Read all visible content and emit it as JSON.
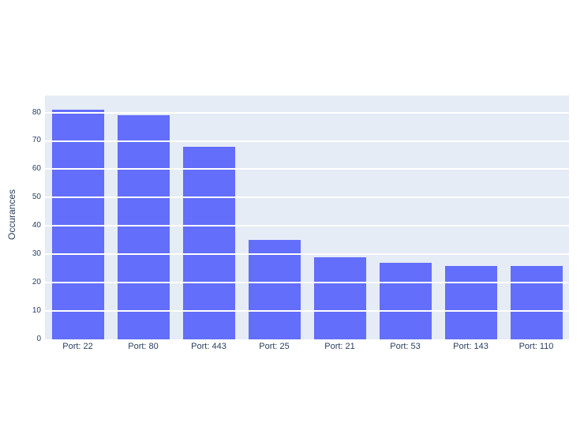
{
  "chart_data": {
    "type": "bar",
    "title": "",
    "xlabel": "",
    "ylabel": "Occurances",
    "categories": [
      "Port: 22",
      "Port: 80",
      "Port: 443",
      "Port: 25",
      "Port: 21",
      "Port: 53",
      "Port: 143",
      "Port: 110"
    ],
    "values": [
      81,
      79,
      68,
      35,
      29,
      27,
      26,
      26
    ],
    "yticks": [
      0,
      10,
      20,
      30,
      40,
      50,
      60,
      70,
      80
    ],
    "ylim": [
      0,
      86
    ],
    "grid": true,
    "legend": false,
    "colors": {
      "bar_fill": "#636efa",
      "plot_background": "#e5ecf6",
      "gridline": "#ffffff",
      "text": "#2a3f5f",
      "page_background": "#ffffff"
    }
  }
}
